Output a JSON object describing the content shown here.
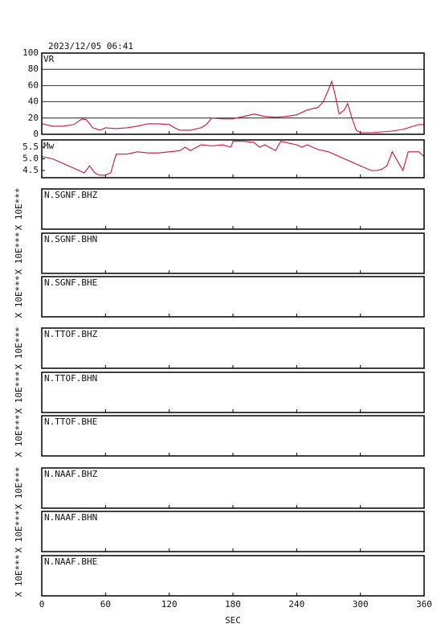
{
  "title": "2023/12/05 06:41",
  "xaxis": {
    "xlabel": "SEC",
    "xlim": [
      0,
      360
    ],
    "xticks": [
      0,
      60,
      120,
      180,
      240,
      300,
      360
    ]
  },
  "chart_data": [
    {
      "type": "line",
      "label": "VR",
      "color": "#d0103a",
      "grid": true,
      "ylim": [
        0,
        100
      ],
      "yticks": [
        0,
        20,
        40,
        60,
        80,
        100
      ],
      "x": [
        0,
        10,
        20,
        30,
        38,
        42,
        48,
        55,
        60,
        70,
        80,
        90,
        100,
        110,
        120,
        125,
        130,
        140,
        150,
        155,
        160,
        170,
        180,
        190,
        200,
        210,
        220,
        230,
        240,
        250,
        260,
        265,
        270,
        273,
        276,
        280,
        285,
        288,
        292,
        296,
        300,
        310,
        320,
        330,
        340,
        350,
        355,
        360
      ],
      "values": [
        13,
        10,
        10,
        12,
        19,
        18,
        8,
        5,
        8,
        7,
        8,
        10,
        13,
        13,
        12,
        8,
        5,
        5,
        8,
        12,
        20,
        19,
        19,
        22,
        25,
        22,
        21,
        22,
        24,
        30,
        33,
        40,
        55,
        65,
        50,
        25,
        30,
        38,
        20,
        5,
        2,
        2,
        3,
        4,
        6,
        10,
        12,
        12
      ]
    },
    {
      "type": "line",
      "label": "Mw",
      "color": "#d0103a",
      "grid": false,
      "ylim": [
        4.19,
        5.81
      ],
      "yticks": [
        4.5,
        {
          "value": 5,
          "label": "5.0"
        },
        5.5
      ],
      "x": [
        0,
        10,
        20,
        30,
        40,
        45,
        50,
        54,
        60,
        65,
        70,
        80,
        90,
        100,
        110,
        120,
        130,
        135,
        140,
        150,
        160,
        170,
        178,
        180,
        190,
        200,
        205,
        210,
        220,
        225,
        230,
        240,
        245,
        250,
        260,
        270,
        280,
        290,
        300,
        310,
        315,
        320,
        325,
        330,
        340,
        345,
        355,
        360
      ],
      "values": [
        5.1,
        5.0,
        4.8,
        4.6,
        4.4,
        4.7,
        4.4,
        4.3,
        4.3,
        4.4,
        5.2,
        5.2,
        5.3,
        5.25,
        5.25,
        5.3,
        5.35,
        5.5,
        5.35,
        5.6,
        5.55,
        5.6,
        5.5,
        5.75,
        5.75,
        5.7,
        5.5,
        5.6,
        5.35,
        5.75,
        5.7,
        5.6,
        5.5,
        5.6,
        5.4,
        5.3,
        5.1,
        4.9,
        4.7,
        4.5,
        4.5,
        4.55,
        4.7,
        5.3,
        4.5,
        5.3,
        5.3,
        5.1
      ]
    },
    {
      "type": "trace",
      "label": "N.SGNF.BHZ",
      "ylabel": "X 10E***"
    },
    {
      "type": "trace",
      "label": "N.SGNF.BHN",
      "ylabel": "X 10E***"
    },
    {
      "type": "trace",
      "label": "N.SGNF.BHE",
      "ylabel": "X 10E***"
    },
    {
      "type": "trace",
      "label": "N.TTOF.BHZ",
      "ylabel": "X 10E***"
    },
    {
      "type": "trace",
      "label": "N.TTOF.BHN",
      "ylabel": "X 10E***"
    },
    {
      "type": "trace",
      "label": "N.TTOF.BHE",
      "ylabel": "X 10E***"
    },
    {
      "type": "trace",
      "label": "N.NAAF.BHZ",
      "ylabel": "X 10E***"
    },
    {
      "type": "trace",
      "label": "N.NAAF.BHN",
      "ylabel": "X 10E***"
    },
    {
      "type": "trace",
      "label": "N.NAAF.BHE",
      "ylabel": "X 10E***"
    }
  ]
}
